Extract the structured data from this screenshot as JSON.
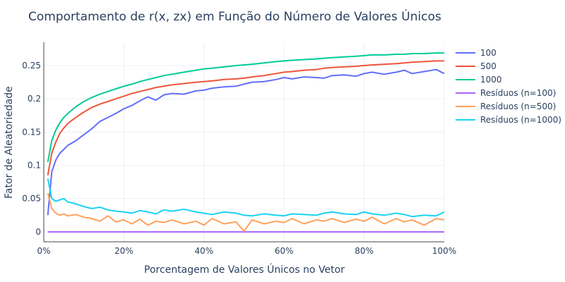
{
  "chart_data": {
    "type": "line",
    "title": "Comportamento de r(x, zx) em Função do Número de Valores Únicos",
    "xlabel": "Porcentagem de Valores Únicos no Vetor",
    "ylabel": "Fator de Aleatoriedade",
    "xlim": [
      0,
      100
    ],
    "ylim": [
      -0.015,
      0.285
    ],
    "x_ticks": [
      0,
      20,
      40,
      60,
      80,
      100
    ],
    "x_tick_labels": [
      "0%",
      "20%",
      "40%",
      "60%",
      "80%",
      "100%"
    ],
    "y_ticks": [
      0,
      0.05,
      0.1,
      0.15,
      0.2,
      0.25
    ],
    "y_tick_labels": [
      "0",
      "0.05",
      "0.1",
      "0.15",
      "0.2",
      "0.25"
    ],
    "grid": true,
    "legend_position": "top-right",
    "series": [
      {
        "name": "100",
        "color": "#636efa",
        "x": [
          1,
          2,
          3,
          4,
          5,
          6,
          8,
          10,
          12,
          14,
          16,
          18,
          20,
          22,
          24,
          26,
          28,
          30,
          32,
          35,
          38,
          40,
          42,
          45,
          48,
          50,
          52,
          55,
          58,
          60,
          62,
          65,
          68,
          70,
          72,
          75,
          78,
          80,
          82,
          85,
          88,
          90,
          92,
          95,
          98,
          100
        ],
        "y": [
          0.025,
          0.09,
          0.108,
          0.118,
          0.124,
          0.13,
          0.137,
          0.146,
          0.155,
          0.166,
          0.172,
          0.178,
          0.185,
          0.19,
          0.197,
          0.203,
          0.198,
          0.206,
          0.208,
          0.207,
          0.212,
          0.213,
          0.216,
          0.218,
          0.219,
          0.222,
          0.225,
          0.226,
          0.229,
          0.232,
          0.23,
          0.233,
          0.232,
          0.231,
          0.235,
          0.236,
          0.234,
          0.238,
          0.24,
          0.237,
          0.24,
          0.243,
          0.238,
          0.241,
          0.244,
          0.238
        ]
      },
      {
        "name": "500",
        "color": "#ef553b",
        "x": [
          1,
          2,
          3,
          4,
          5,
          6,
          8,
          10,
          12,
          14,
          16,
          18,
          20,
          22,
          24,
          26,
          28,
          30,
          32,
          35,
          38,
          40,
          42,
          45,
          48,
          50,
          52,
          55,
          58,
          60,
          62,
          65,
          68,
          70,
          72,
          75,
          78,
          80,
          82,
          85,
          88,
          90,
          92,
          95,
          98,
          100
        ],
        "y": [
          0.085,
          0.118,
          0.135,
          0.148,
          0.156,
          0.163,
          0.172,
          0.18,
          0.187,
          0.192,
          0.196,
          0.2,
          0.204,
          0.208,
          0.211,
          0.214,
          0.217,
          0.219,
          0.221,
          0.223,
          0.225,
          0.226,
          0.227,
          0.229,
          0.23,
          0.231,
          0.233,
          0.235,
          0.238,
          0.24,
          0.241,
          0.243,
          0.244,
          0.246,
          0.247,
          0.248,
          0.249,
          0.25,
          0.251,
          0.252,
          0.253,
          0.254,
          0.255,
          0.256,
          0.257,
          0.257
        ]
      },
      {
        "name": "1000",
        "color": "#00cc96",
        "x": [
          1,
          2,
          3,
          4,
          5,
          6,
          8,
          10,
          12,
          14,
          16,
          18,
          20,
          22,
          24,
          26,
          28,
          30,
          32,
          35,
          38,
          40,
          42,
          45,
          48,
          50,
          52,
          55,
          58,
          60,
          62,
          65,
          68,
          70,
          72,
          75,
          78,
          80,
          82,
          85,
          88,
          90,
          92,
          95,
          98,
          100
        ],
        "y": [
          0.105,
          0.137,
          0.153,
          0.164,
          0.172,
          0.178,
          0.188,
          0.196,
          0.202,
          0.207,
          0.211,
          0.215,
          0.219,
          0.222,
          0.226,
          0.229,
          0.232,
          0.235,
          0.237,
          0.24,
          0.243,
          0.245,
          0.246,
          0.248,
          0.25,
          0.251,
          0.252,
          0.254,
          0.256,
          0.257,
          0.258,
          0.259,
          0.26,
          0.261,
          0.262,
          0.263,
          0.264,
          0.265,
          0.266,
          0.266,
          0.267,
          0.267,
          0.268,
          0.268,
          0.269,
          0.269
        ]
      },
      {
        "name": "Resíduos (n=100)",
        "color": "#ab63fa",
        "x": [
          1,
          100
        ],
        "y": [
          0,
          0
        ]
      },
      {
        "name": "Resíduos (n=500)",
        "color": "#ffa15a",
        "x": [
          1,
          2,
          3,
          4,
          5,
          6,
          8,
          10,
          12,
          14,
          16,
          18,
          20,
          22,
          24,
          26,
          28,
          30,
          32,
          35,
          38,
          40,
          42,
          45,
          48,
          50,
          52,
          55,
          58,
          60,
          62,
          65,
          68,
          70,
          72,
          75,
          78,
          80,
          82,
          85,
          88,
          90,
          92,
          95,
          98,
          100
        ],
        "y": [
          0.058,
          0.035,
          0.028,
          0.025,
          0.027,
          0.024,
          0.026,
          0.022,
          0.02,
          0.016,
          0.024,
          0.015,
          0.018,
          0.012,
          0.019,
          0.01,
          0.016,
          0.014,
          0.018,
          0.012,
          0.016,
          0.01,
          0.02,
          0.012,
          0.015,
          0.001,
          0.018,
          0.012,
          0.016,
          0.014,
          0.02,
          0.012,
          0.018,
          0.016,
          0.02,
          0.014,
          0.019,
          0.016,
          0.022,
          0.012,
          0.02,
          0.015,
          0.018,
          0.01,
          0.02,
          0.018
        ]
      },
      {
        "name": "Resíduos (n=1000)",
        "color": "#19d3f3",
        "x": [
          1,
          2,
          3,
          4,
          5,
          6,
          8,
          10,
          12,
          14,
          16,
          18,
          20,
          22,
          24,
          26,
          28,
          30,
          32,
          35,
          38,
          40,
          42,
          45,
          48,
          50,
          52,
          55,
          58,
          60,
          62,
          65,
          68,
          70,
          72,
          75,
          78,
          80,
          82,
          85,
          88,
          90,
          92,
          95,
          98,
          100
        ],
        "y": [
          0.08,
          0.05,
          0.046,
          0.048,
          0.05,
          0.045,
          0.042,
          0.038,
          0.035,
          0.037,
          0.033,
          0.031,
          0.03,
          0.028,
          0.032,
          0.03,
          0.027,
          0.033,
          0.031,
          0.034,
          0.03,
          0.028,
          0.026,
          0.03,
          0.028,
          0.025,
          0.024,
          0.027,
          0.025,
          0.024,
          0.027,
          0.026,
          0.025,
          0.028,
          0.03,
          0.027,
          0.026,
          0.03,
          0.027,
          0.025,
          0.028,
          0.026,
          0.023,
          0.025,
          0.024,
          0.03
        ]
      }
    ]
  }
}
